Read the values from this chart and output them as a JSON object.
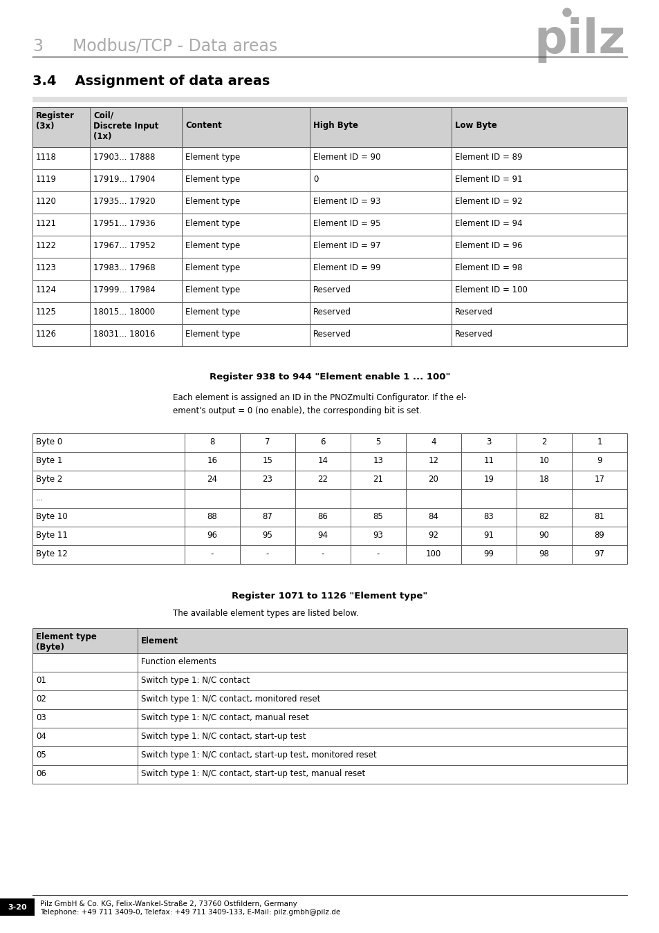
{
  "table1_rows": [
    [
      "1118",
      "17903... 17888",
      "Element type",
      "Element ID = 90",
      "Element ID = 89"
    ],
    [
      "1119",
      "17919... 17904",
      "Element type",
      "0",
      "Element ID = 91"
    ],
    [
      "1120",
      "17935... 17920",
      "Element type",
      "Element ID = 93",
      "Element ID = 92"
    ],
    [
      "1121",
      "17951... 17936",
      "Element type",
      "Element ID = 95",
      "Element ID = 94"
    ],
    [
      "1122",
      "17967... 17952",
      "Element type",
      "Element ID = 97",
      "Element ID = 96"
    ],
    [
      "1123",
      "17983... 17968",
      "Element type",
      "Element ID = 99",
      "Element ID = 98"
    ],
    [
      "1124",
      "17999... 17984",
      "Element type",
      "Reserved",
      "Element ID = 100"
    ],
    [
      "1125",
      "18015... 18000",
      "Element type",
      "Reserved",
      "Reserved"
    ],
    [
      "1126",
      "18031... 18016",
      "Element type",
      "Reserved",
      "Reserved"
    ]
  ],
  "table2_header": [
    "Byte 0",
    "8",
    "7",
    "6",
    "5",
    "4",
    "3",
    "2",
    "1"
  ],
  "table2_rows": [
    [
      "Byte 1",
      "16",
      "15",
      "14",
      "13",
      "12",
      "11",
      "10",
      "9"
    ],
    [
      "Byte 2",
      "24",
      "23",
      "22",
      "21",
      "20",
      "19",
      "18",
      "17"
    ],
    [
      "...",
      "",
      "",
      "",
      "",
      "",
      "",
      "",
      ""
    ],
    [
      "Byte 10",
      "88",
      "87",
      "86",
      "85",
      "84",
      "83",
      "82",
      "81"
    ],
    [
      "Byte 11",
      "96",
      "95",
      "94",
      "93",
      "92",
      "91",
      "90",
      "89"
    ],
    [
      "Byte 12",
      "-",
      "-",
      "-",
      "-",
      "100",
      "99",
      "98",
      "97"
    ]
  ],
  "table3_rows": [
    [
      "",
      "Function elements"
    ],
    [
      "01",
      "Switch type 1: N/C contact"
    ],
    [
      "02",
      "Switch type 1: N/C contact, monitored reset"
    ],
    [
      "03",
      "Switch type 1: N/C contact, manual reset"
    ],
    [
      "04",
      "Switch type 1: N/C contact, start-up test"
    ],
    [
      "05",
      "Switch type 1: N/C contact, start-up test, monitored reset"
    ],
    [
      "06",
      "Switch type 1: N/C contact, start-up test, manual reset"
    ]
  ],
  "footer_text1": "Pilz GmbH & Co. KG, Felix-Wankel-Straße 2, 73760 Ostfildern, Germany",
  "footer_text2": "Telephone: +49 711 3409-0, Telefax: +49 711 3409-133, E-Mail: pilz.gmbh@pilz.de",
  "bg_color": "#ffffff",
  "gray_header": "#d0d0d0",
  "border_color": "#555555",
  "text_color": "#000000",
  "gray_text": "#999999"
}
